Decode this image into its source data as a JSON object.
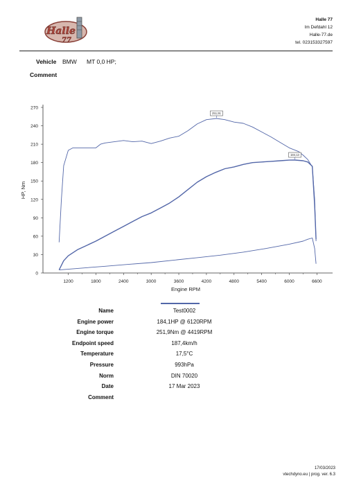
{
  "header": {
    "logo_text": "Halle 77",
    "company_name": "Halle 77",
    "address_line1": "Im Defdahl 12",
    "website": "Halle-77.de",
    "phone": "tel. 023153327597"
  },
  "vehicle": {
    "label": "Vehicle",
    "make": "BMW",
    "model": "MT 0,0 HP;"
  },
  "comment_label": "Comment",
  "colors": {
    "curve": "#5266a8",
    "axis": "#333333",
    "logo_red": "#b0483d"
  },
  "chart_data": {
    "type": "line",
    "xlabel": "Engine RPM",
    "ylabel": "HP, Nm",
    "xlim": [
      650,
      6850
    ],
    "ylim": [
      0,
      270
    ],
    "xticks": [
      1200,
      1800,
      2400,
      3000,
      3600,
      4200,
      4800,
      5400,
      6000,
      6600
    ],
    "yticks": [
      0,
      30,
      60,
      90,
      120,
      150,
      180,
      210,
      240,
      270
    ],
    "grid": false,
    "series": [
      {
        "role": "torque",
        "x": [
          1000,
          1050,
          1100,
          1200,
          1300,
          1500,
          1800,
          1900,
          2000,
          2200,
          2400,
          2600,
          2800,
          3000,
          3200,
          3400,
          3600,
          3800,
          4000,
          4200,
          4419,
          4600,
          4800,
          5000,
          5200,
          5400,
          5600,
          5800,
          6000,
          6200,
          6300,
          6400,
          6500,
          6550,
          6580
        ],
        "y": [
          50,
          120,
          175,
          200,
          204,
          204,
          204,
          210,
          212,
          214,
          216,
          214,
          215,
          211,
          215,
          220,
          223,
          232,
          243,
          250,
          251.9,
          250,
          246,
          244,
          238,
          230,
          222,
          213,
          204,
          198,
          192,
          185,
          173,
          120,
          52
        ]
      },
      {
        "role": "power",
        "x": [
          1000,
          1100,
          1200,
          1400,
          1600,
          1800,
          2000,
          2200,
          2400,
          2600,
          2800,
          3000,
          3200,
          3400,
          3600,
          3800,
          4000,
          4200,
          4400,
          4600,
          4800,
          5000,
          5200,
          5400,
          5600,
          5800,
          6000,
          6120,
          6300,
          6400,
          6500,
          6550,
          6580
        ],
        "y": [
          5,
          20,
          28,
          38,
          45,
          52,
          60,
          68,
          76,
          84,
          92,
          98,
          106,
          114,
          124,
          136,
          148,
          157,
          164,
          170,
          173,
          177,
          180,
          181,
          182,
          183,
          184,
          184.1,
          183,
          181,
          174,
          110,
          55
        ]
      },
      {
        "role": "loss",
        "x": [
          1000,
          1500,
          2000,
          2500,
          3000,
          3500,
          4000,
          4500,
          5000,
          5500,
          6000,
          6300,
          6400,
          6500,
          6550,
          6580
        ],
        "y": [
          5,
          8,
          11,
          14,
          17,
          21,
          25,
          29,
          34,
          40,
          47,
          52,
          55,
          57,
          40,
          15
        ]
      }
    ],
    "annotations": [
      {
        "text": "251,91",
        "x": 4419,
        "y": 251.9
      },
      {
        "text": "184,13",
        "x": 6120,
        "y": 184.1
      }
    ]
  },
  "results": [
    {
      "key": "Name",
      "value": "Test0002"
    },
    {
      "key": "Engine power",
      "value": "184,1HP @ 6120RPM"
    },
    {
      "key": "Engine torque",
      "value": "251,9Nm @ 4419RPM"
    },
    {
      "key": "Endpoint speed",
      "value": "187,4km/h"
    },
    {
      "key": "Temperature",
      "value": "17,5°C"
    },
    {
      "key": "Pressure",
      "value": "993hPa"
    },
    {
      "key": "Norm",
      "value": "DIN 70020"
    },
    {
      "key": "Date",
      "value": "17 Mar 2023"
    },
    {
      "key": "Comment",
      "value": ""
    }
  ],
  "footer": {
    "date": "17/03/2023",
    "software": "vtechdyno.eu | prog. ver. 6.3"
  }
}
